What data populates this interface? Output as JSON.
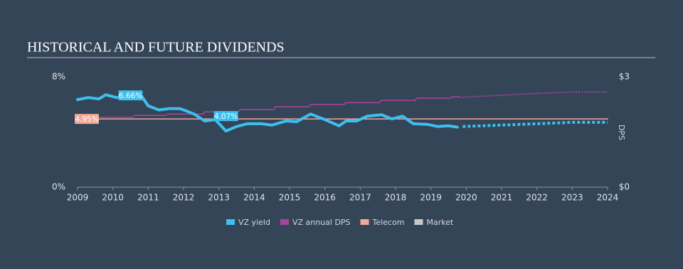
{
  "chart_data": {
    "type": "line",
    "title": "HISTORICAL AND FUTURE DIVIDENDS",
    "xlim": [
      2009,
      2024
    ],
    "xticks": [
      2009,
      2010,
      2011,
      2012,
      2013,
      2014,
      2015,
      2016,
      2017,
      2018,
      2019,
      2020,
      2021,
      2022,
      2023,
      2024
    ],
    "ylim": [
      0,
      8
    ],
    "yticks": [
      {
        "value": 0,
        "label": "0%"
      },
      {
        "value": 8,
        "label": "8%"
      }
    ],
    "y2lim": [
      0,
      3
    ],
    "y2ticks": [
      {
        "value": 0,
        "label": "$0"
      },
      {
        "value": 3,
        "label": "$3"
      }
    ],
    "y2label": "DPS",
    "series": [
      {
        "name": "VZ yield",
        "color": "#3dbfef",
        "width": 4,
        "x": [
          2009,
          2009.3,
          2009.6,
          2009.8,
          2010.1,
          2010.5,
          2010.8,
          2011.0,
          2011.3,
          2011.6,
          2011.9,
          2012.1,
          2012.3,
          2012.6,
          2012.9,
          2013.2,
          2013.5,
          2013.8,
          2014.2,
          2014.5,
          2014.9,
          2015.2,
          2015.6,
          2016.0,
          2016.4,
          2016.6,
          2016.9,
          2017.2,
          2017.6,
          2017.9,
          2018.2,
          2018.5,
          2018.9,
          2019.2,
          2019.5,
          2019.75
        ],
        "values": [
          6.35,
          6.5,
          6.4,
          6.7,
          6.5,
          6.66,
          6.65,
          5.9,
          5.6,
          5.7,
          5.7,
          5.5,
          5.3,
          4.8,
          4.9,
          4.07,
          4.4,
          4.6,
          4.6,
          4.5,
          4.8,
          4.75,
          5.3,
          4.9,
          4.45,
          4.8,
          4.8,
          5.15,
          5.25,
          4.95,
          5.15,
          4.6,
          4.55,
          4.4,
          4.45,
          4.35
        ],
        "forecast_x": [
          2019.9,
          2021,
          2022,
          2023,
          2024
        ],
        "forecast_values": [
          4.4,
          4.5,
          4.6,
          4.7,
          4.7
        ]
      },
      {
        "name": "VZ annual DPS",
        "color": "#a8449f",
        "width": 1.5,
        "axis": "y2",
        "x": [
          2009,
          2009.55,
          2009.6,
          2010.55,
          2010.6,
          2011.5,
          2011.55,
          2012.55,
          2012.6,
          2013.55,
          2013.6,
          2014.55,
          2014.6,
          2015.55,
          2015.6,
          2016.55,
          2016.6,
          2017.55,
          2017.6,
          2018.55,
          2018.6,
          2019.55,
          2019.6,
          2019.8
        ],
        "values": [
          1.84,
          1.84,
          1.9,
          1.9,
          1.95,
          1.95,
          1.99,
          1.99,
          2.05,
          2.05,
          2.11,
          2.11,
          2.19,
          2.19,
          2.25,
          2.25,
          2.3,
          2.3,
          2.36,
          2.36,
          2.42,
          2.42,
          2.46,
          2.46
        ],
        "forecast_x": [
          2019.8,
          2021,
          2022,
          2023,
          2024
        ],
        "forecast_values": [
          2.44,
          2.5,
          2.55,
          2.59,
          2.59
        ]
      },
      {
        "name": "Telecom",
        "color": "#f2a899",
        "width": 1.5,
        "x": [
          2009,
          2024
        ],
        "values": [
          4.95,
          4.95
        ]
      },
      {
        "name": "Market",
        "color": "#c8c8c8",
        "width": 1.5,
        "x": [],
        "values": []
      }
    ],
    "annotations": [
      {
        "x": 2010.5,
        "value": 6.66,
        "label": "6.66%",
        "color": "#3dbfef"
      },
      {
        "x": 2009,
        "value": 4.95,
        "label": "4.95%",
        "color": "#f2a899"
      },
      {
        "x": 2013.2,
        "value": 4.07,
        "label": "4.07%",
        "color": "#3dbfef"
      }
    ]
  }
}
